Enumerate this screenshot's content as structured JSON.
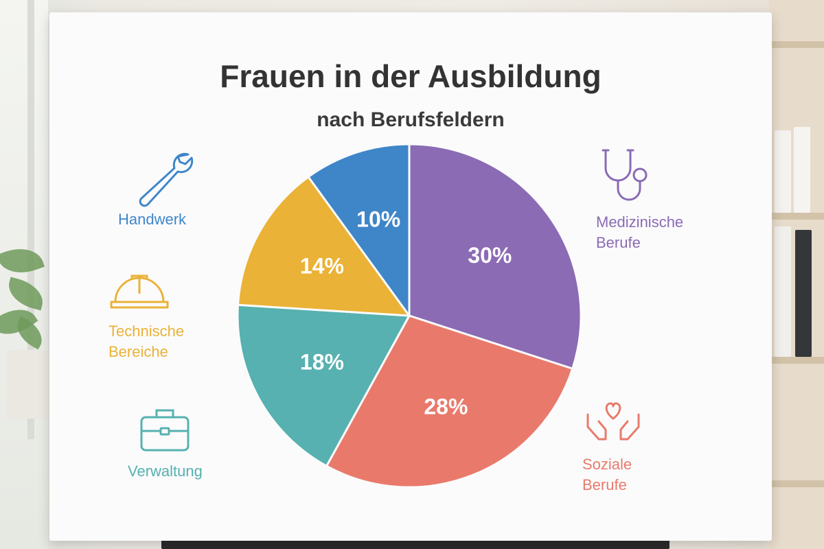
{
  "chart_data": {
    "type": "pie",
    "title": "Frauen in der Ausbildung",
    "subtitle": "nach Berufsfeldern",
    "slices": [
      {
        "name": "Medizinische Berufe",
        "label_lines": [
          "Medizinische",
          "Berufe"
        ],
        "value": 30,
        "label": "30%",
        "color": "#8a6bb4",
        "icon": "stethoscope-icon"
      },
      {
        "name": "Soziale Berufe",
        "label_lines": [
          "Soziale",
          "Berufe"
        ],
        "value": 28,
        "label": "28%",
        "color": "#e97a6b",
        "icon": "heart-hands-icon"
      },
      {
        "name": "Verwaltung",
        "label_lines": [
          "Verwaltung"
        ],
        "value": 18,
        "label": "18%",
        "color": "#56b1b0",
        "icon": "briefcase-icon"
      },
      {
        "name": "Technische Bereiche",
        "label_lines": [
          "Technische",
          "Bereiche"
        ],
        "value": 14,
        "label": "14%",
        "color": "#eab236",
        "icon": "hard-hat-icon"
      },
      {
        "name": "Handwerk",
        "label_lines": [
          "Handwerk"
        ],
        "value": 10,
        "label": "10%",
        "color": "#3f86c9",
        "icon": "wrench-icon"
      }
    ],
    "start": "12 o'clock",
    "direction": "clockwise",
    "legend": "icons with labels beside the pie"
  }
}
